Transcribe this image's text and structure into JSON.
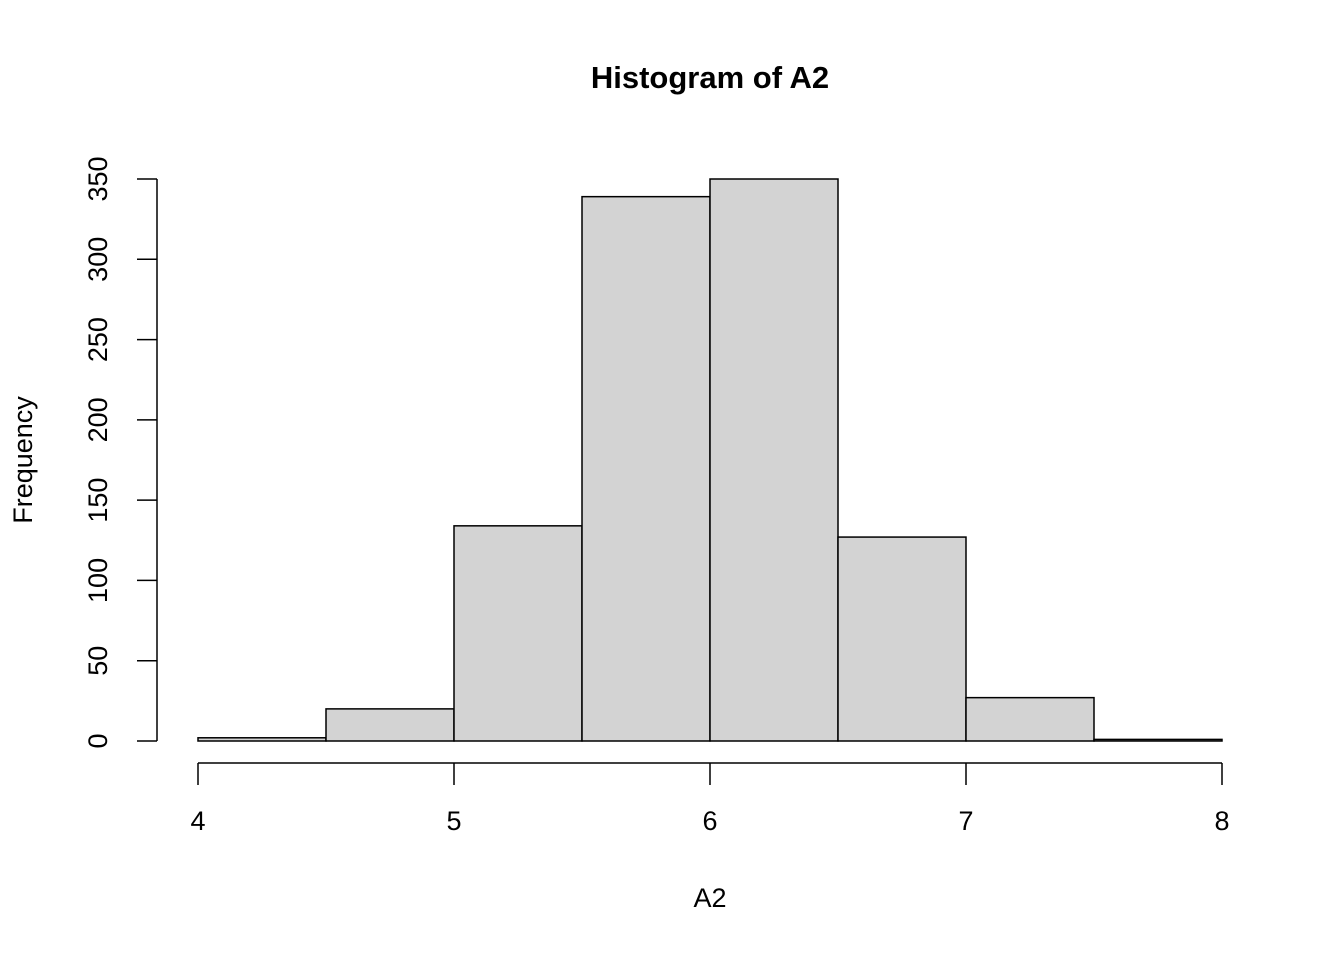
{
  "chart_data": {
    "type": "histogram",
    "title": "Histogram of A2",
    "x_label": "A2",
    "y_label": "Frequency",
    "bins": [
      4,
      4.5,
      5,
      5.5,
      6,
      6.5,
      7,
      7.5,
      8
    ],
    "values": [
      2,
      20,
      134,
      339,
      350,
      127,
      27,
      1
    ],
    "color": "#d3d3d3",
    "xlim": [
      4,
      8
    ],
    "xticks": [
      4,
      5,
      6,
      7,
      8
    ],
    "ylim": [
      0,
      350
    ],
    "yticks": [
      0,
      50,
      100,
      150,
      200,
      250,
      300,
      350
    ]
  }
}
